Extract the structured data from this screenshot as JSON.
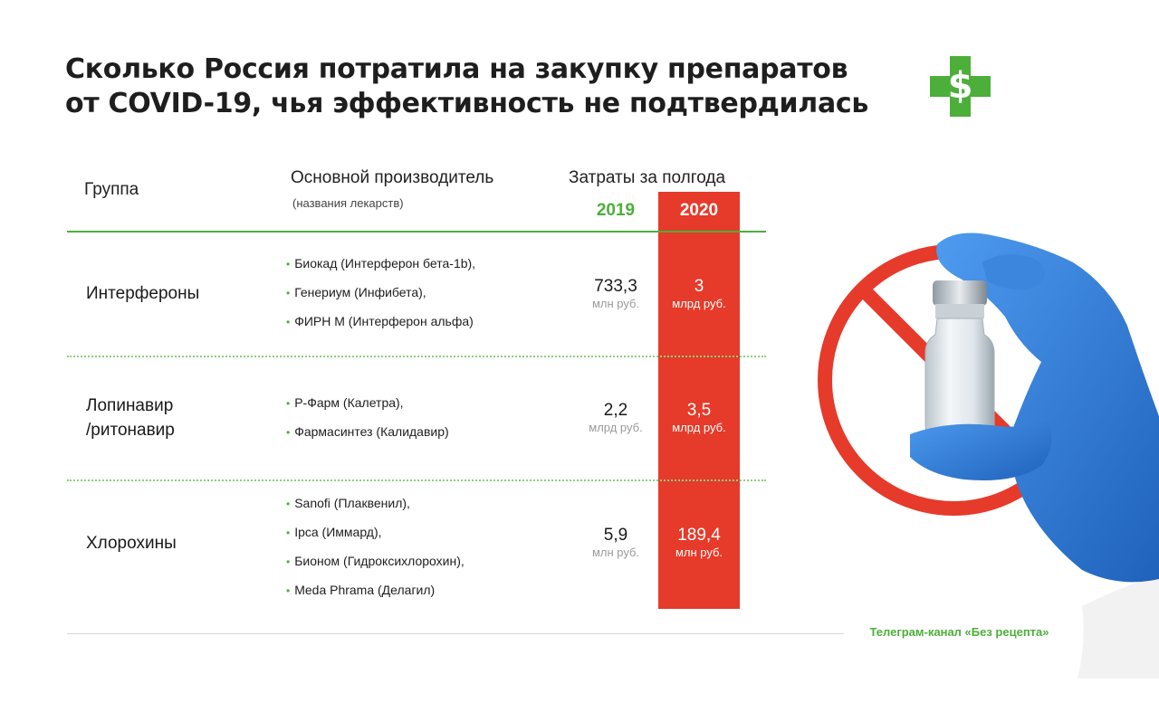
{
  "title": {
    "line1": "Сколько Россия потратила на закупку препаратов",
    "line2": "от COVID-19, чья эффективность не подтвердилась"
  },
  "logo": {
    "symbol": "$",
    "icon": "pharmacy-cross-dollar-icon",
    "color": "#4caf3a"
  },
  "header": {
    "group": "Группа",
    "manufacturer": "Основной производитель",
    "manufacturer_sub": "(названия лекарств)",
    "costs": "Затраты за полгода",
    "year1": "2019",
    "year2": "2020"
  },
  "rows": [
    {
      "group": "Интерфероны",
      "manufacturers": [
        "Биокад (Интерферон бета-1b),",
        "Генериум (Инфибета),",
        "ФИРН М (Интерферон альфа)"
      ],
      "v2019": {
        "value": "733,3",
        "unit": "млн руб."
      },
      "v2020": {
        "value": "3",
        "unit": "млрд руб."
      }
    },
    {
      "group_line1": "Лопинавир",
      "group_line2": "/ритонавир",
      "manufacturers": [
        "Р-Фарм (Калетра),",
        "Фармасинтез (Калидавир)"
      ],
      "v2019": {
        "value": "2,2",
        "unit": "млрд руб."
      },
      "v2020": {
        "value": "3,5",
        "unit": "млрд руб."
      }
    },
    {
      "group": "Хлорохины",
      "manufacturers": [
        "Sanofi (Плаквенил),",
        "Ipca (Иммард),",
        "Бионом (Гидроксихлорохин),",
        "Meda Phrama (Делагил)"
      ],
      "v2019": {
        "value": "5,9",
        "unit": "млн руб."
      },
      "v2020": {
        "value": "189,4",
        "unit": "млн руб."
      }
    }
  ],
  "footer": "Телеграм-канал «Без рецепта»",
  "colors": {
    "accent_green": "#4caf3a",
    "accent_red": "#e63a2a",
    "glove_blue": "#2f7fd6"
  },
  "photo": {
    "icon": "vial-in-gloved-hand-prohibited-icon"
  }
}
